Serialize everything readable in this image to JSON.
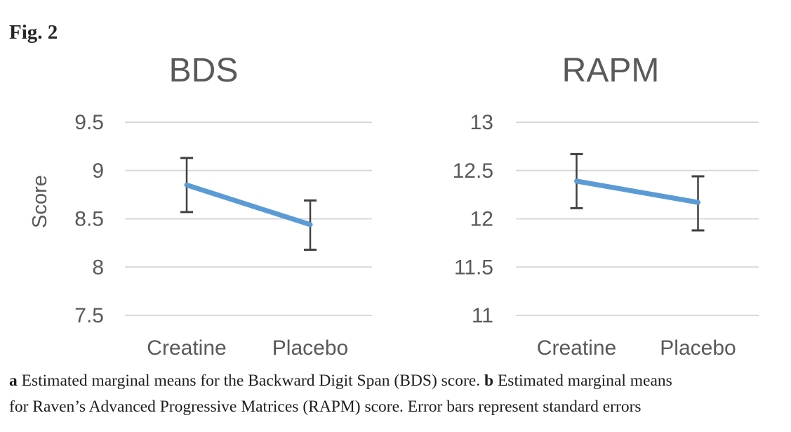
{
  "figure": {
    "label": "Fig. 2"
  },
  "caption": {
    "a_marker": "a",
    "a_text": " Estimated marginal means for the Backward Digit Span (BDS) score. ",
    "b_marker": "b",
    "b_text_line1": " Estimated marginal means",
    "b_text_line2": "for Raven’s Advanced Progressive Matrices (RAPM) score. Error bars represent standard errors"
  },
  "colors": {
    "line": "#5B9BD5",
    "error_bar": "#404040",
    "gridline": "#D9D9D9",
    "axis_text": "#595959",
    "title_text": "#595959",
    "caption_text": "#1e1e1e"
  },
  "chart_data": [
    {
      "type": "line",
      "title": "BDS",
      "xlabel": "",
      "ylabel": "Score",
      "categories": [
        "Creatine",
        "Placebo"
      ],
      "series": [
        {
          "name": "Estimated marginal mean",
          "values": [
            8.85,
            8.44
          ]
        }
      ],
      "error_upper": [
        9.13,
        8.69
      ],
      "error_lower": [
        8.57,
        8.18
      ],
      "yticks": [
        9.5,
        9,
        8.5,
        8,
        7.5
      ],
      "ylim": [
        7.5,
        9.5
      ],
      "grid": true,
      "legend": false
    },
    {
      "type": "line",
      "title": "RAPM",
      "xlabel": "",
      "ylabel": "",
      "categories": [
        "Creatine",
        "Placebo"
      ],
      "series": [
        {
          "name": "Estimated marginal mean",
          "values": [
            12.39,
            12.17
          ]
        }
      ],
      "error_upper": [
        12.67,
        12.44
      ],
      "error_lower": [
        12.11,
        11.88
      ],
      "yticks": [
        13,
        12.5,
        12,
        11.5,
        11
      ],
      "ylim": [
        11,
        13
      ],
      "grid": true,
      "legend": false
    }
  ]
}
